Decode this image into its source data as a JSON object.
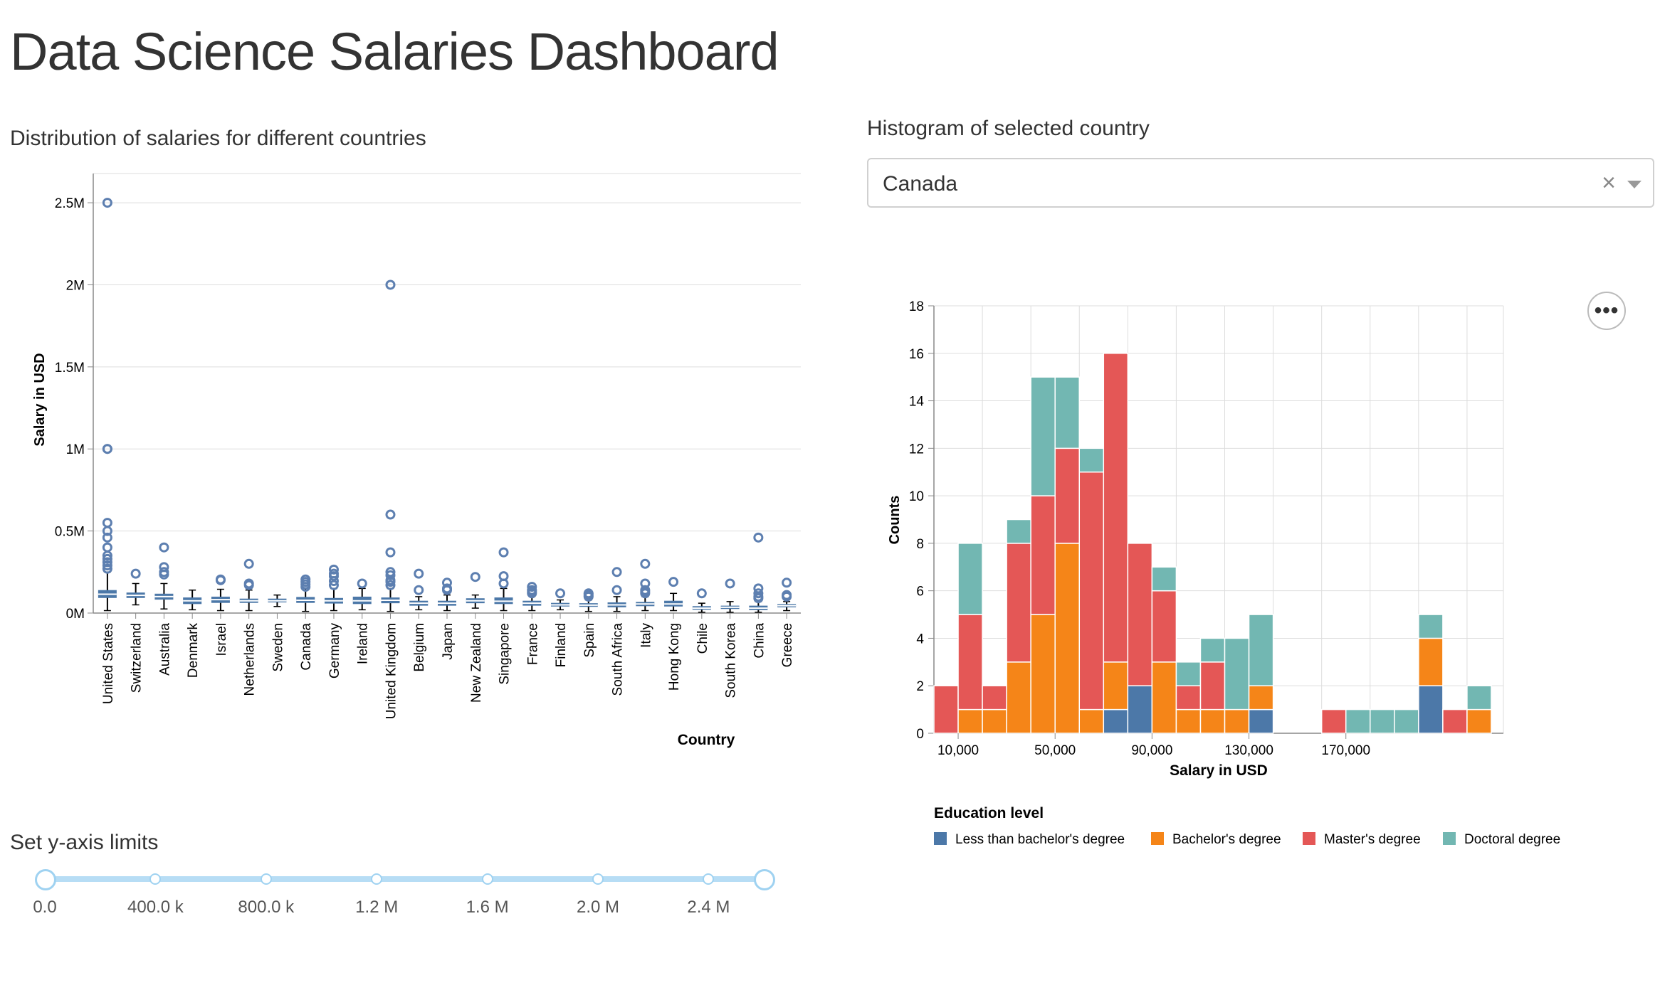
{
  "page": {
    "title": "Data Science Salaries Dashboard"
  },
  "box_section": {
    "title": "Distribution of salaries for different countries"
  },
  "hist_section": {
    "title": "Histogram of selected country",
    "dropdown": {
      "selected": "Canada",
      "clear_icon": "close-icon",
      "arrow_icon": "chevron-down-icon"
    },
    "menu_label": "•••"
  },
  "slider_section": {
    "title": "Set y-axis limits",
    "marks": [
      "0.0",
      "400.0 k",
      "800.0 k",
      "1.2 M",
      "1.6 M",
      "2.0 M",
      "2.4 M"
    ],
    "range": [
      0,
      2600000
    ],
    "selected": [
      0,
      2600000
    ],
    "accent": "#9fd2f1"
  },
  "chart_data": [
    {
      "type": "boxplot",
      "ylabel": "Salary in USD",
      "xlabel": "Country",
      "ylim": [
        0,
        2600000
      ],
      "yticks": [
        {
          "value": 0,
          "label": "0M"
        },
        {
          "value": 500000,
          "label": "0.5M"
        },
        {
          "value": 1000000,
          "label": "1M"
        },
        {
          "value": 1500000,
          "label": "1.5M"
        },
        {
          "value": 2000000,
          "label": "2M"
        },
        {
          "value": 2500000,
          "label": "2.5M"
        }
      ],
      "color": "#4c78a8",
      "categories": [
        {
          "name": "United States",
          "q1": 92000,
          "median": 115000,
          "q3": 140000,
          "min": 15000,
          "max": 250000,
          "outliers": [
            270000,
            290000,
            310000,
            330000,
            350000,
            400000,
            460000,
            500000,
            550000,
            1000000,
            1000000,
            2500000
          ]
        },
        {
          "name": "Switzerland",
          "q1": 92000,
          "median": 108000,
          "q3": 125000,
          "min": 50000,
          "max": 180000,
          "outliers": [
            240000
          ]
        },
        {
          "name": "Australia",
          "q1": 82000,
          "median": 100000,
          "q3": 118000,
          "min": 25000,
          "max": 180000,
          "outliers": [
            235000,
            250000,
            280000,
            400000
          ]
        },
        {
          "name": "Denmark",
          "q1": 55000,
          "median": 75000,
          "q3": 95000,
          "min": 20000,
          "max": 140000,
          "outliers": []
        },
        {
          "name": "Israel",
          "q1": 62000,
          "median": 82000,
          "q3": 100000,
          "min": 15000,
          "max": 145000,
          "outliers": [
            200000,
            205000
          ]
        },
        {
          "name": "Netherlands",
          "q1": 62000,
          "median": 75000,
          "q3": 88000,
          "min": 15000,
          "max": 140000,
          "outliers": [
            170000,
            180000,
            300000
          ]
        },
        {
          "name": "Sweden",
          "q1": 65000,
          "median": 75000,
          "q3": 88000,
          "min": 40000,
          "max": 110000,
          "outliers": []
        },
        {
          "name": "Canada",
          "q1": 62000,
          "median": 78000,
          "q3": 98000,
          "min": 10000,
          "max": 150000,
          "outliers": [
            160000,
            175000,
            190000,
            205000
          ]
        },
        {
          "name": "Germany",
          "q1": 58000,
          "median": 75000,
          "q3": 92000,
          "min": 15000,
          "max": 150000,
          "outliers": [
            170000,
            195000,
            225000,
            240000,
            265000
          ]
        },
        {
          "name": "Ireland",
          "q1": 55000,
          "median": 75000,
          "q3": 100000,
          "min": 20000,
          "max": 150000,
          "outliers": [
            180000
          ]
        },
        {
          "name": "United Kingdom",
          "q1": 60000,
          "median": 78000,
          "q3": 95000,
          "min": 10000,
          "max": 150000,
          "outliers": [
            170000,
            190000,
            200000,
            230000,
            250000,
            370000,
            600000,
            2000000
          ]
        },
        {
          "name": "Belgium",
          "q1": 45000,
          "median": 60000,
          "q3": 75000,
          "min": 20000,
          "max": 100000,
          "outliers": [
            140000,
            240000
          ]
        },
        {
          "name": "Japan",
          "q1": 45000,
          "median": 60000,
          "q3": 75000,
          "min": 15000,
          "max": 110000,
          "outliers": [
            140000,
            150000,
            185000
          ]
        },
        {
          "name": "New Zealand",
          "q1": 60000,
          "median": 75000,
          "q3": 90000,
          "min": 30000,
          "max": 110000,
          "outliers": [
            220000
          ]
        },
        {
          "name": "Singapore",
          "q1": 55000,
          "median": 72000,
          "q3": 95000,
          "min": 15000,
          "max": 150000,
          "outliers": [
            180000,
            225000,
            370000
          ]
        },
        {
          "name": "France",
          "q1": 45000,
          "median": 60000,
          "q3": 75000,
          "min": 15000,
          "max": 110000,
          "outliers": [
            120000,
            130000,
            140000,
            160000
          ]
        },
        {
          "name": "Finland",
          "q1": 40000,
          "median": 50000,
          "q3": 62000,
          "min": 20000,
          "max": 80000,
          "outliers": [
            120000
          ]
        },
        {
          "name": "Spain",
          "q1": 38000,
          "median": 48000,
          "q3": 60000,
          "min": 10000,
          "max": 80000,
          "outliers": [
            100000,
            105000,
            115000,
            120000
          ]
        },
        {
          "name": "South Africa",
          "q1": 35000,
          "median": 50000,
          "q3": 65000,
          "min": 10000,
          "max": 100000,
          "outliers": [
            140000,
            250000
          ]
        },
        {
          "name": "Italy",
          "q1": 42000,
          "median": 55000,
          "q3": 68000,
          "min": 15000,
          "max": 100000,
          "outliers": [
            120000,
            130000,
            140000,
            180000,
            300000
          ]
        },
        {
          "name": "Hong Kong",
          "q1": 40000,
          "median": 55000,
          "q3": 75000,
          "min": 15000,
          "max": 120000,
          "outliers": [
            190000
          ]
        },
        {
          "name": "Chile",
          "q1": 20000,
          "median": 30000,
          "q3": 42000,
          "min": 5000,
          "max": 60000,
          "outliers": [
            120000
          ]
        },
        {
          "name": "South Korea",
          "q1": 25000,
          "median": 35000,
          "q3": 45000,
          "min": 5000,
          "max": 70000,
          "outliers": [
            180000
          ]
        },
        {
          "name": "China",
          "q1": 18000,
          "median": 30000,
          "q3": 45000,
          "min": 5000,
          "max": 70000,
          "outliers": [
            90000,
            100000,
            120000,
            150000,
            460000
          ]
        },
        {
          "name": "Greece",
          "q1": 35000,
          "median": 45000,
          "q3": 55000,
          "min": 15000,
          "max": 70000,
          "outliers": [
            100000,
            110000,
            185000
          ]
        }
      ]
    },
    {
      "type": "bar",
      "stacked": true,
      "xlabel": "Salary in USD",
      "ylabel": "Counts",
      "ylim": [
        0,
        18
      ],
      "yticks": [
        0,
        2,
        4,
        6,
        8,
        10,
        12,
        14,
        16,
        18
      ],
      "xticks": [
        {
          "value": 10000,
          "label": "10,000"
        },
        {
          "value": 50000,
          "label": "50,000"
        },
        {
          "value": 90000,
          "label": "90,000"
        },
        {
          "value": 130000,
          "label": "130,000"
        },
        {
          "value": 170000,
          "label": "170,000"
        }
      ],
      "bin_start": 0,
      "bin_width": 10000,
      "x_domain": [
        0,
        235000
      ],
      "legend": {
        "title": "Education level",
        "position": "bottom-left"
      },
      "series": [
        {
          "name": "Less than bachelor's degree",
          "color": "#4c78a8",
          "values": [
            0,
            0,
            0,
            0,
            0,
            0,
            0,
            1,
            2,
            0,
            0,
            0,
            0,
            1,
            0,
            0,
            0,
            0,
            0,
            0,
            2,
            0,
            0
          ]
        },
        {
          "name": "Bachelor's degree",
          "color": "#f58518",
          "values": [
            0,
            1,
            1,
            3,
            5,
            8,
            1,
            2,
            0,
            3,
            1,
            1,
            1,
            1,
            0,
            0,
            0,
            0,
            0,
            0,
            2,
            0,
            1
          ]
        },
        {
          "name": "Master's degree",
          "color": "#e45756",
          "values": [
            2,
            4,
            1,
            5,
            5,
            4,
            10,
            13,
            6,
            3,
            1,
            2,
            0,
            0,
            0,
            0,
            1,
            0,
            0,
            0,
            0,
            1,
            0
          ]
        },
        {
          "name": "Doctoral degree",
          "color": "#72b7b2",
          "values": [
            0,
            3,
            0,
            1,
            5,
            3,
            1,
            0,
            0,
            1,
            1,
            1,
            3,
            3,
            0,
            0,
            0,
            1,
            1,
            1,
            1,
            0,
            1
          ]
        }
      ]
    }
  ]
}
